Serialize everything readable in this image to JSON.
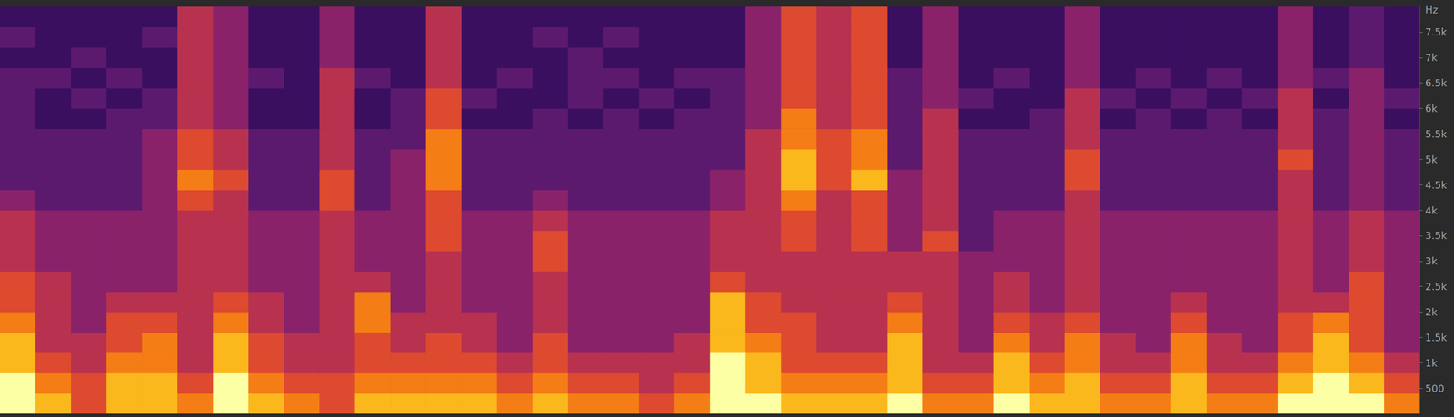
{
  "chart_data": {
    "type": "heatmap",
    "y_label": "Hz",
    "categories": [
      null,
      null,
      null,
      null,
      null,
      null,
      null,
      null,
      null,
      null,
      null,
      null,
      null,
      null,
      null,
      null,
      null,
      null,
      null,
      null,
      null,
      null,
      null,
      null,
      null,
      null,
      null,
      null,
      null,
      null,
      null,
      null,
      null,
      null,
      null,
      null,
      null,
      null,
      null,
      null
    ],
    "y_bins": [
      0,
      400,
      800,
      1200,
      1600,
      2000,
      2400,
      2800,
      3200,
      3600,
      4000,
      4400,
      4800,
      5200,
      5600,
      6000,
      6400,
      6800,
      7200,
      7600,
      8000
    ],
    "ylim": [
      0,
      8000
    ],
    "yticks": [
      500,
      {
        "value": 1000,
        "label": "1k"
      },
      {
        "value": 1500,
        "label": "1.5k"
      },
      {
        "value": 2000,
        "label": "2k"
      },
      {
        "value": 2500,
        "label": "2.5k"
      },
      {
        "value": 3000,
        "label": "3k"
      },
      {
        "value": 3500,
        "label": "3.5k"
      },
      {
        "value": 4000,
        "label": "4k"
      },
      {
        "value": 4500,
        "label": "4.5k"
      },
      {
        "value": 5000,
        "label": "5k"
      },
      {
        "value": 5500,
        "label": "5.5k"
      },
      {
        "value": 6000,
        "label": "6k"
      },
      {
        "value": 6500,
        "label": "6.5k"
      },
      {
        "value": 7000,
        "label": "7k"
      },
      {
        "value": 7500,
        "label": "7.5k"
      }
    ],
    "color_range": [
      0,
      9
    ],
    "tick_labels": "y",
    "grid": false,
    "cells": [
      [
        9,
        8,
        6,
        8,
        8,
        7,
        9,
        8,
        7,
        6,
        8,
        8,
        8,
        8,
        7,
        8,
        7,
        7,
        6,
        7,
        9,
        9,
        8,
        8,
        8,
        9,
        7,
        7,
        9,
        8,
        8,
        7,
        7,
        8,
        7,
        7,
        9,
        9,
        9,
        7
      ],
      [
        9,
        7,
        6,
        8,
        8,
        6,
        9,
        7,
        6,
        6,
        7,
        7,
        7,
        7,
        6,
        7,
        6,
        6,
        5,
        6,
        9,
        8,
        7,
        7,
        7,
        8,
        6,
        6,
        8,
        7,
        8,
        6,
        6,
        8,
        6,
        6,
        8,
        9,
        8,
        6
      ],
      [
        8,
        6,
        5,
        7,
        7,
        5,
        8,
        6,
        5,
        5,
        6,
        6,
        6,
        6,
        5,
        6,
        5,
        5,
        5,
        5,
        9,
        8,
        6,
        6,
        6,
        8,
        5,
        5,
        8,
        6,
        7,
        5,
        5,
        7,
        5,
        5,
        7,
        8,
        7,
        5
      ],
      [
        8,
        5,
        5,
        6,
        7,
        5,
        8,
        6,
        5,
        5,
        6,
        5,
        6,
        5,
        4,
        6,
        4,
        4,
        4,
        5,
        8,
        7,
        6,
        5,
        5,
        8,
        5,
        4,
        7,
        5,
        7,
        5,
        4,
        7,
        5,
        4,
        6,
        8,
        6,
        4
      ],
      [
        7,
        5,
        4,
        6,
        6,
        5,
        7,
        5,
        4,
        5,
        7,
        5,
        5,
        5,
        4,
        5,
        4,
        4,
        4,
        4,
        8,
        6,
        6,
        5,
        5,
        7,
        5,
        4,
        6,
        5,
        6,
        4,
        4,
        6,
        4,
        4,
        6,
        7,
        6,
        4
      ],
      [
        6,
        5,
        4,
        5,
        5,
        5,
        6,
        5,
        4,
        5,
        7,
        4,
        5,
        4,
        4,
        5,
        4,
        4,
        4,
        4,
        8,
        6,
        5,
        5,
        5,
        6,
        5,
        4,
        5,
        4,
        5,
        4,
        4,
        5,
        4,
        4,
        5,
        5,
        6,
        4
      ],
      [
        6,
        5,
        4,
        4,
        4,
        5,
        5,
        4,
        4,
        5,
        5,
        4,
        5,
        4,
        4,
        5,
        4,
        4,
        4,
        4,
        6,
        5,
        5,
        5,
        5,
        5,
        5,
        4,
        5,
        4,
        5,
        4,
        4,
        4,
        4,
        4,
        5,
        4,
        6,
        4
      ],
      [
        5,
        4,
        4,
        4,
        4,
        5,
        5,
        4,
        4,
        5,
        4,
        4,
        5,
        4,
        4,
        6,
        4,
        4,
        4,
        4,
        5,
        5,
        5,
        5,
        5,
        5,
        5,
        4,
        4,
        4,
        5,
        4,
        4,
        4,
        4,
        4,
        5,
        4,
        5,
        4
      ],
      [
        5,
        4,
        4,
        4,
        4,
        5,
        5,
        4,
        4,
        5,
        4,
        4,
        6,
        4,
        4,
        6,
        4,
        4,
        4,
        4,
        5,
        5,
        6,
        5,
        6,
        4,
        6,
        3,
        4,
        4,
        5,
        4,
        4,
        4,
        4,
        4,
        5,
        4,
        5,
        4
      ],
      [
        5,
        4,
        4,
        4,
        4,
        5,
        5,
        4,
        4,
        5,
        4,
        4,
        6,
        4,
        4,
        5,
        4,
        4,
        4,
        4,
        5,
        5,
        6,
        5,
        6,
        4,
        5,
        3,
        4,
        4,
        5,
        4,
        4,
        4,
        4,
        4,
        5,
        4,
        5,
        4
      ],
      [
        4,
        3,
        3,
        3,
        4,
        6,
        5,
        3,
        3,
        6,
        3,
        4,
        6,
        3,
        3,
        4,
        3,
        3,
        3,
        3,
        4,
        5,
        7,
        5,
        6,
        4,
        5,
        3,
        3,
        3,
        5,
        3,
        3,
        3,
        3,
        3,
        5,
        3,
        4,
        3
      ],
      [
        3,
        3,
        3,
        3,
        4,
        7,
        6,
        3,
        3,
        6,
        3,
        4,
        7,
        3,
        3,
        3,
        3,
        3,
        3,
        3,
        4,
        5,
        8,
        6,
        8,
        4,
        5,
        3,
        3,
        3,
        6,
        3,
        3,
        3,
        3,
        3,
        5,
        3,
        4,
        3
      ],
      [
        3,
        3,
        3,
        3,
        4,
        6,
        5,
        3,
        3,
        5,
        3,
        4,
        7,
        3,
        3,
        3,
        3,
        3,
        3,
        3,
        3,
        5,
        8,
        6,
        7,
        3,
        5,
        3,
        3,
        3,
        6,
        3,
        3,
        3,
        3,
        3,
        6,
        3,
        4,
        3
      ],
      [
        3,
        3,
        3,
        3,
        4,
        6,
        5,
        3,
        3,
        5,
        3,
        3,
        7,
        3,
        3,
        3,
        3,
        3,
        3,
        3,
        3,
        5,
        7,
        6,
        7,
        3,
        5,
        3,
        3,
        3,
        5,
        3,
        3,
        3,
        3,
        3,
        5,
        3,
        4,
        3
      ],
      [
        3,
        2,
        2,
        3,
        3,
        5,
        4,
        2,
        2,
        5,
        2,
        3,
        6,
        2,
        2,
        3,
        2,
        3,
        2,
        3,
        3,
        4,
        7,
        5,
        6,
        3,
        5,
        2,
        2,
        3,
        5,
        2,
        3,
        2,
        3,
        2,
        5,
        3,
        4,
        2
      ],
      [
        3,
        2,
        3,
        2,
        3,
        5,
        4,
        2,
        2,
        5,
        2,
        3,
        6,
        3,
        2,
        2,
        3,
        2,
        3,
        2,
        3,
        4,
        6,
        5,
        6,
        3,
        4,
        3,
        2,
        2,
        5,
        3,
        2,
        3,
        2,
        3,
        5,
        2,
        4,
        3
      ],
      [
        3,
        3,
        2,
        3,
        2,
        5,
        4,
        3,
        2,
        5,
        3,
        2,
        5,
        2,
        3,
        2,
        3,
        3,
        2,
        3,
        3,
        4,
        6,
        5,
        6,
        3,
        4,
        2,
        3,
        2,
        4,
        2,
        3,
        2,
        3,
        2,
        4,
        3,
        4,
        2
      ],
      [
        2,
        2,
        3,
        2,
        2,
        5,
        4,
        2,
        2,
        4,
        2,
        2,
        5,
        2,
        2,
        2,
        3,
        2,
        2,
        2,
        2,
        4,
        6,
        5,
        6,
        2,
        4,
        2,
        2,
        2,
        4,
        2,
        2,
        2,
        2,
        2,
        4,
        2,
        3,
        2
      ],
      [
        3,
        2,
        2,
        2,
        3,
        5,
        4,
        2,
        2,
        4,
        2,
        2,
        5,
        2,
        2,
        3,
        2,
        3,
        2,
        2,
        2,
        4,
        6,
        5,
        6,
        2,
        4,
        2,
        2,
        2,
        4,
        2,
        2,
        2,
        2,
        2,
        4,
        2,
        3,
        2
      ],
      [
        2,
        2,
        2,
        2,
        2,
        5,
        4,
        2,
        2,
        4,
        2,
        2,
        5,
        2,
        2,
        2,
        2,
        2,
        2,
        2,
        2,
        4,
        6,
        5,
        6,
        2,
        4,
        2,
        2,
        2,
        4,
        2,
        2,
        2,
        2,
        2,
        4,
        2,
        3,
        2
      ]
    ]
  }
}
